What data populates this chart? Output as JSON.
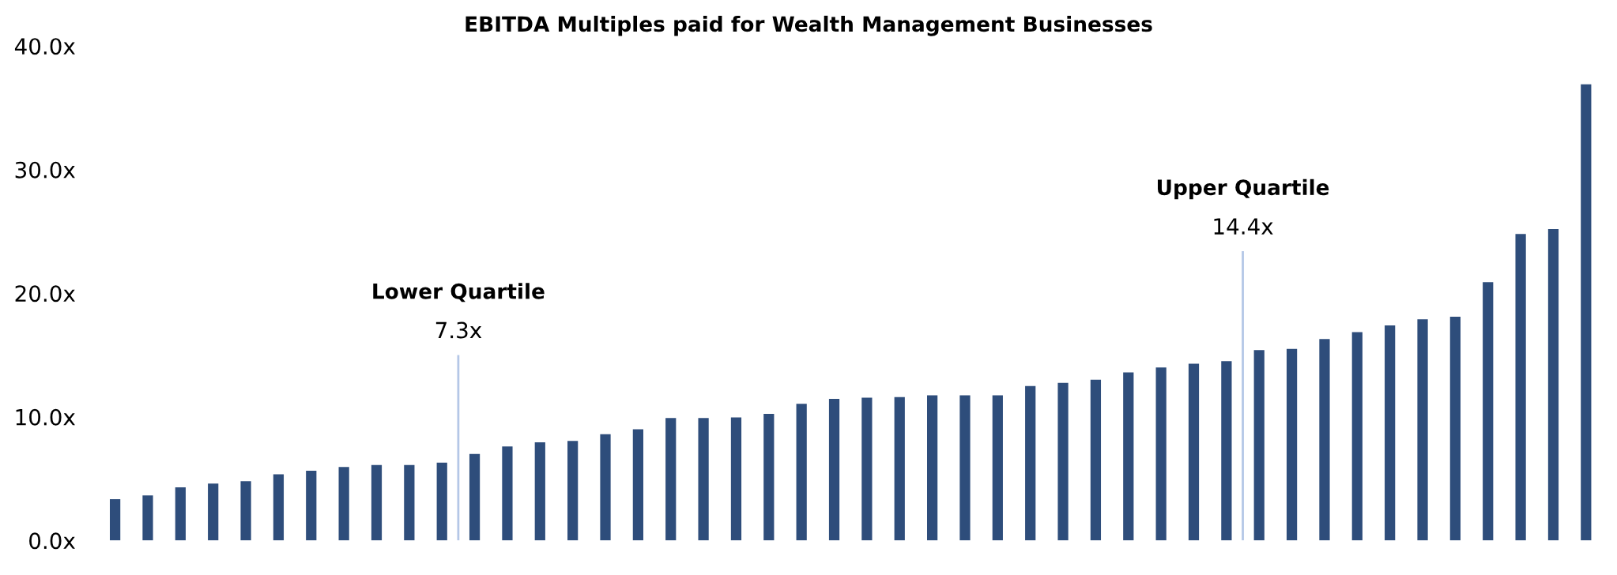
{
  "chart_data": {
    "type": "bar",
    "title": "EBITDA Multiples paid for Wealth Management Businesses",
    "categories": [
      null,
      null,
      null,
      null,
      null,
      null,
      null,
      null,
      null,
      null,
      null,
      null,
      null,
      null,
      null,
      null,
      null,
      null,
      null,
      null,
      null,
      null,
      null,
      null,
      null,
      null,
      null,
      null,
      null,
      null,
      null,
      null,
      null,
      null,
      null,
      null,
      null,
      null,
      null,
      null,
      null,
      null,
      null,
      null,
      null,
      null
    ],
    "values": [
      3.35,
      3.65,
      4.3,
      4.6,
      4.8,
      5.35,
      5.65,
      5.95,
      6.1,
      6.1,
      6.3,
      7.0,
      7.6,
      7.95,
      8.05,
      8.6,
      9.0,
      9.9,
      9.9,
      9.95,
      10.25,
      11.05,
      11.45,
      11.55,
      11.6,
      11.75,
      11.75,
      11.75,
      12.5,
      12.75,
      13.0,
      13.6,
      14.0,
      14.3,
      14.5,
      15.4,
      15.5,
      16.3,
      16.85,
      17.4,
      17.9,
      18.1,
      20.9,
      24.8,
      25.2,
      36.9
    ],
    "color": "#2e4d7b",
    "ylim": [
      0,
      40
    ],
    "yticks": [
      {
        "value": 0,
        "label": "0.0x"
      },
      {
        "value": 10,
        "label": "10.0x"
      },
      {
        "value": 20,
        "label": "20.0x"
      },
      {
        "value": 30,
        "label": "30.0x"
      },
      {
        "value": 40,
        "label": "40.0x"
      }
    ],
    "tick_labels": "y",
    "grid": false,
    "annotations": [
      "Lower Quartile",
      "7.3x",
      "Upper Quartile",
      "14.4x"
    ]
  }
}
